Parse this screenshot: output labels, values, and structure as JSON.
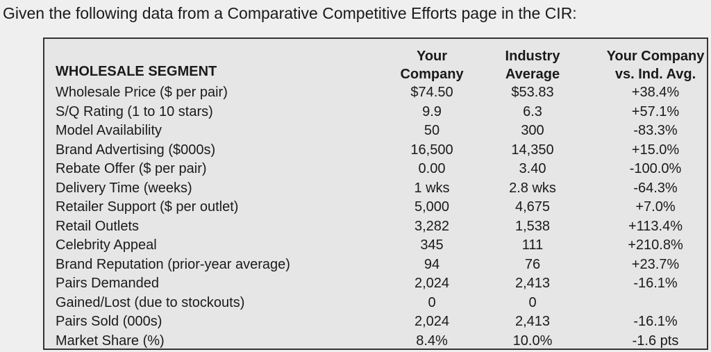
{
  "heading": "Given the following data from a Comparative Competitive Efforts page in the CIR:",
  "table": {
    "header": {
      "segment": "WHOLESALE SEGMENT",
      "columns": [
        [
          "Your",
          "Company"
        ],
        [
          "Industry",
          "Average"
        ],
        [
          "Your Company",
          "vs. Ind. Avg."
        ]
      ]
    },
    "rows": [
      [
        "Wholesale Price ($ per pair)",
        "$74.50",
        "$53.83",
        "+38.4%"
      ],
      [
        "S/Q Rating (1 to 10 stars)",
        "9.9",
        "6.3",
        "+57.1%"
      ],
      [
        "Model Availability",
        "50",
        "300",
        "-83.3%"
      ],
      [
        "Brand Advertising ($000s)",
        "16,500",
        "14,350",
        "+15.0%"
      ],
      [
        "Rebate Offer ($ per pair)",
        "0.00",
        "3.40",
        "-100.0%"
      ],
      [
        "Delivery Time (weeks)",
        "1 wks",
        "2.8 wks",
        "-64.3%"
      ],
      [
        "Retailer Support ($ per outlet)",
        "5,000",
        "4,675",
        "+7.0%"
      ],
      [
        "Retail Outlets",
        "3,282",
        "1,538",
        "+113.4%"
      ],
      [
        "Celebrity Appeal",
        "345",
        "111",
        "+210.8%"
      ],
      [
        "Brand Reputation (prior-year average)",
        "94",
        "76",
        "+23.7%"
      ],
      [
        "Pairs Demanded",
        "2,024",
        "2,413",
        "-16.1%"
      ],
      [
        "Gained/Lost (due to stockouts)",
        "0",
        "0"
      ],
      [
        "Pairs Sold (000s)",
        "2,024",
        "2,413",
        "-16.1%"
      ],
      [
        "Market Share (%)",
        "8.4%",
        "10.0%",
        "-1.6 pts"
      ]
    ]
  }
}
